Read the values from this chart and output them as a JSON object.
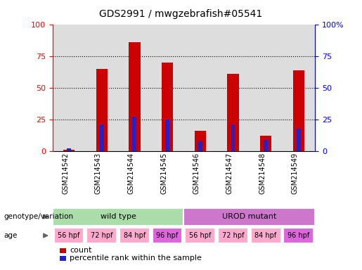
{
  "title": "GDS2991 / mwgzebrafish#05541",
  "samples": [
    "GSM214542",
    "GSM214543",
    "GSM214544",
    "GSM214545",
    "GSM214546",
    "GSM214547",
    "GSM214548",
    "GSM214549"
  ],
  "count_values": [
    1,
    65,
    86,
    70,
    16,
    61,
    12,
    64
  ],
  "percentile_values": [
    2,
    21,
    27,
    25,
    8,
    21,
    9,
    18
  ],
  "genotype_groups": [
    {
      "label": "wild type",
      "start": 0,
      "end": 4,
      "color": "#aaddaa"
    },
    {
      "label": "UROD mutant",
      "start": 4,
      "end": 8,
      "color": "#cc77cc"
    }
  ],
  "age_labels": [
    "56 hpf",
    "72 hpf",
    "84 hpf",
    "96 hpf",
    "56 hpf",
    "72 hpf",
    "84 hpf",
    "96 hpf"
  ],
  "age_colors": [
    "#ffaacc",
    "#ffaacc",
    "#ffaacc",
    "#dd66dd",
    "#ffaacc",
    "#ffaacc",
    "#ffaacc",
    "#dd66dd"
  ],
  "bar_color_red": "#CC0000",
  "bar_color_blue": "#2222CC",
  "ylim": [
    0,
    100
  ],
  "yticks": [
    0,
    25,
    50,
    75,
    100
  ],
  "background_color": "#FFFFFF",
  "legend_count_label": "count",
  "legend_percentile_label": "percentile rank within the sample",
  "genotype_label": "genotype/variation",
  "age_label": "age"
}
